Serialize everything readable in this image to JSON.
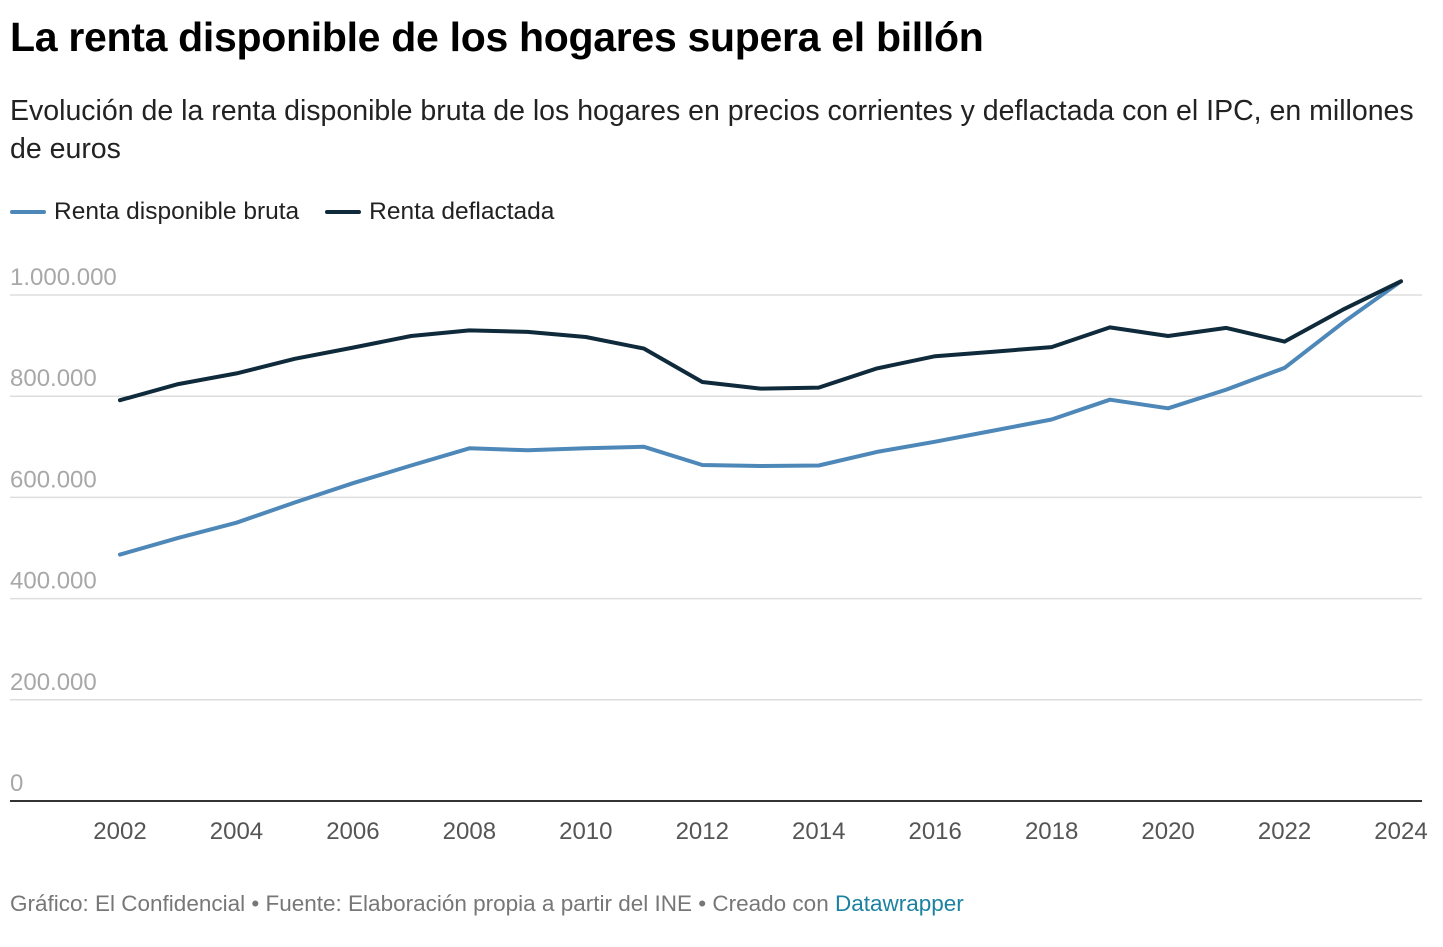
{
  "title": "La renta disponible de los hogares supera el billón",
  "subtitle": "Evolución de la renta disponible bruta de los hogares en precios corrientes y deflactada con el IPC, en millones de euros",
  "footer": {
    "grafico": "Gráfico: El Confidencial",
    "sep1": " • ",
    "fuente": "Fuente: Elaboración propia a partir del INE",
    "sep2": " • ",
    "creado": "Creado con ",
    "datawrapper": "Datawrapper"
  },
  "colors": {
    "bruta": "#4e88b8",
    "deflactada": "#0f2a3b",
    "grid": "#dddddd",
    "axis_label": "#a8a8a8",
    "x_label": "#555555",
    "link": "#1d81a2"
  },
  "chart_data": {
    "type": "line",
    "x": [
      2002,
      2003,
      2004,
      2005,
      2006,
      2007,
      2008,
      2009,
      2010,
      2011,
      2012,
      2013,
      2014,
      2015,
      2016,
      2017,
      2018,
      2019,
      2020,
      2021,
      2022,
      2023,
      2024
    ],
    "series": [
      {
        "name": "Renta disponible bruta",
        "color": "#4e88b8",
        "values": [
          487000,
          520000,
          550000,
          590000,
          628000,
          663000,
          697000,
          693000,
          697000,
          700000,
          664000,
          662000,
          663000,
          690000,
          710000,
          732000,
          754000,
          793000,
          776000,
          813000,
          856000,
          945000,
          1027000
        ]
      },
      {
        "name": "Renta deflactada",
        "color": "#0f2a3b",
        "values": [
          792000,
          824000,
          845000,
          874000,
          896000,
          919000,
          930000,
          927000,
          917000,
          894000,
          828000,
          815000,
          817000,
          855000,
          879000,
          888000,
          897000,
          936000,
          919000,
          935000,
          908000,
          971000,
          1027000
        ]
      }
    ],
    "y_ticks": [
      0,
      200000,
      400000,
      600000,
      800000,
      1000000
    ],
    "y_tick_labels": [
      "0",
      "200.000",
      "400.000",
      "600.000",
      "800.000",
      "1.000.000"
    ],
    "x_ticks": [
      2002,
      2004,
      2006,
      2008,
      2010,
      2012,
      2014,
      2016,
      2018,
      2020,
      2022,
      2024
    ],
    "x_tick_labels": [
      "2002",
      "2004",
      "2006",
      "2008",
      "2010",
      "2012",
      "2014",
      "2016",
      "2018",
      "2020",
      "2022",
      "2024"
    ],
    "xlim": [
      2002,
      2024
    ],
    "ylim": [
      0,
      1000000
    ],
    "grid": true,
    "legend_position": "top-left"
  }
}
